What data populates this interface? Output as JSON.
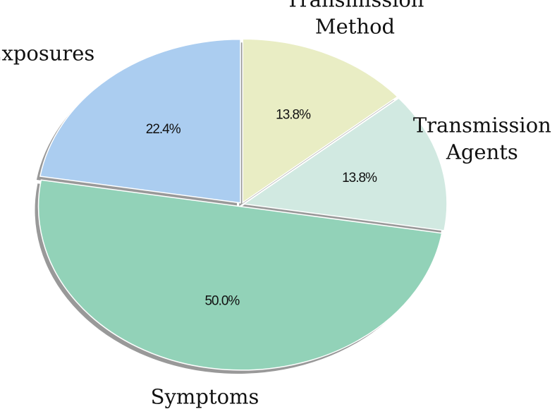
{
  "chart_data": {
    "type": "pie",
    "categories": [
      "Exposures",
      "Symptoms",
      "Transmission Agents",
      "Transmission Method"
    ],
    "values": [
      22.4,
      50,
      13.8,
      13.8
    ],
    "value_labels": [
      "22.4%",
      "50.0%",
      "13.8%",
      "13.8%"
    ],
    "colors": [
      "#abcdf0",
      "#92d2b8",
      "#d1e9e1",
      "#e9edc4"
    ],
    "start_angle": 90,
    "shadow": true
  }
}
